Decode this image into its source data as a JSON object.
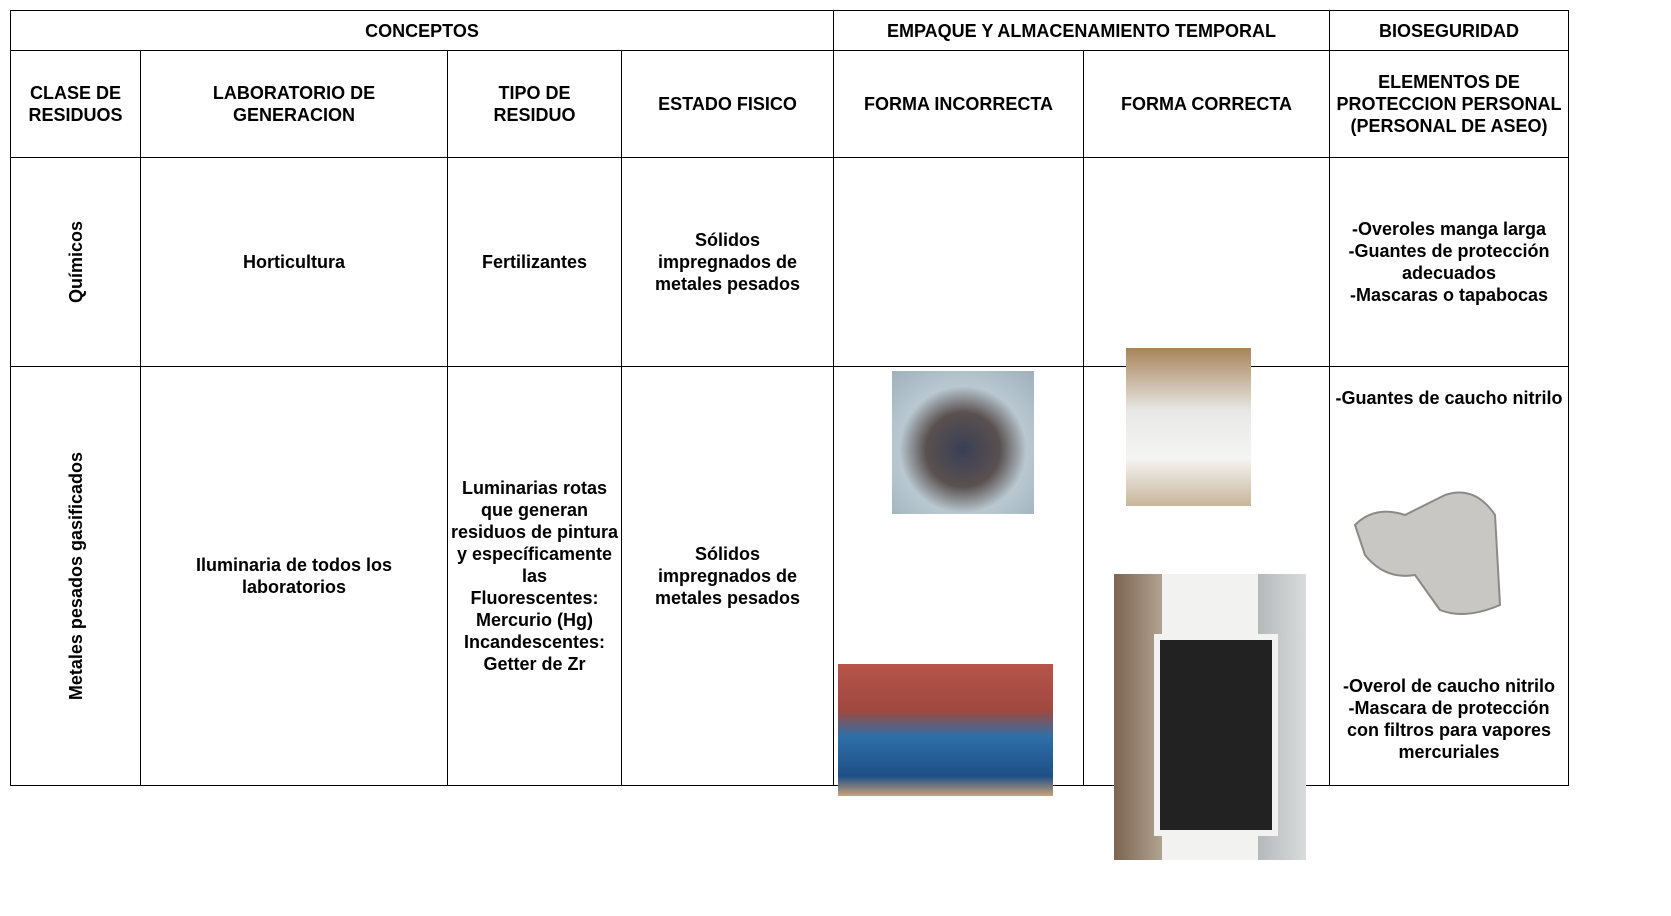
{
  "header": {
    "conceptos": "CONCEPTOS",
    "empaque": "EMPAQUE Y ALMACENAMIENTO TEMPORAL",
    "bioseguridad": "BIOSEGURIDAD"
  },
  "columns": [
    "CLASE DE RESIDUOS",
    "LABORATORIO DE GENERACION",
    "TIPO DE RESIDUO",
    "ESTADO FISICO",
    "FORMA INCORRECTA",
    "FORMA CORRECTA",
    "ELEMENTOS DE PROTECCION PERSONAL (PERSONAL DE ASEO)"
  ],
  "rows": [
    {
      "clase": "Químicos",
      "laboratorio": "Horticultura",
      "tipo": "Fertilizantes",
      "estado": "Sólidos impregnados de metales pesados",
      "proteccion": [
        [
          "-Overoles manga larga",
          "-Guantes de protección adecuados",
          "-Mascaras o tapabocas"
        ]
      ]
    },
    {
      "clase": "Metales pesados gasificados",
      "laboratorio": "Iluminaria de todos los laboratorios",
      "tipo": [
        "Luminarias rotas que generan residuos de pintura y específicamente las",
        "Fluorescentes: Mercurio (Hg)",
        "Incandescentes: Getter de Zr"
      ],
      "estado": "Sólidos impregnados de metales pesados",
      "proteccion": [
        [
          "-Guantes de caucho nitrilo"
        ],
        [
          "-Overol de caucho nitrilo",
          "-Mascara de protección con filtros para vapores mercuriales"
        ]
      ]
    }
  ]
}
